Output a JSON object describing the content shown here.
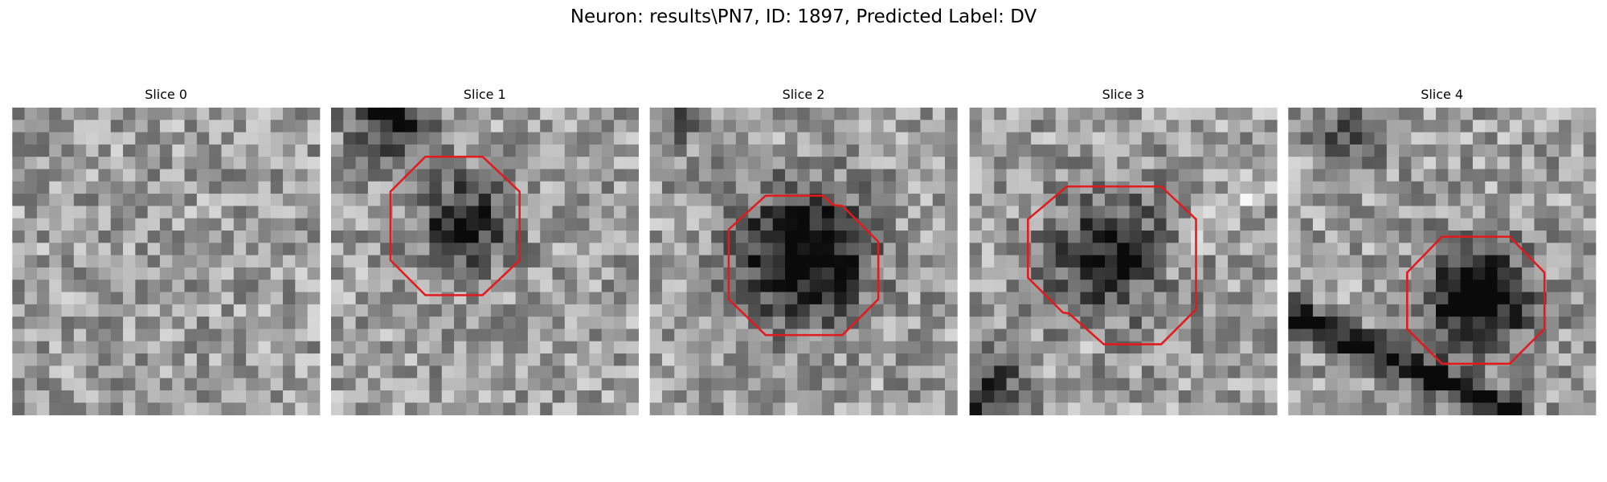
{
  "figure": {
    "title": "Neuron: results\\PN7, ID: 1897, Predicted Label: DV",
    "panels": [
      {
        "title": "Slice 0"
      },
      {
        "title": "Slice 1"
      },
      {
        "title": "Slice 2"
      },
      {
        "title": "Slice 3"
      },
      {
        "title": "Slice 4"
      }
    ]
  }
}
